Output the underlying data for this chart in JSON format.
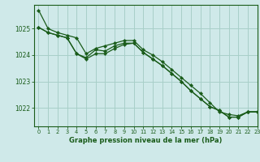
{
  "title": "Graphe pression niveau de la mer (hPa)",
  "background_color": "#cfe9e9",
  "grid_color": "#a8cfc8",
  "line_color": "#1a5c1a",
  "spine_color": "#1a5c1a",
  "xlim": [
    -0.5,
    23
  ],
  "ylim": [
    1021.3,
    1025.9
  ],
  "yticks": [
    1022,
    1023,
    1024,
    1025
  ],
  "xticks": [
    0,
    1,
    2,
    3,
    4,
    5,
    6,
    7,
    8,
    9,
    10,
    11,
    12,
    13,
    14,
    15,
    16,
    17,
    18,
    19,
    20,
    21,
    22,
    23
  ],
  "series": [
    [
      1025.7,
      1025.0,
      1024.85,
      1024.75,
      1024.65,
      1024.05,
      1024.25,
      1024.35,
      1024.45,
      1024.55,
      1024.55,
      1024.2,
      1024.0,
      1023.75,
      1023.45,
      1023.15,
      1022.85,
      1022.55,
      1022.2,
      1021.85,
      1021.75,
      1021.7,
      1021.85,
      1021.85
    ],
    [
      1025.05,
      1024.85,
      1024.75,
      1024.65,
      1024.05,
      1023.9,
      1024.2,
      1024.15,
      1024.35,
      1024.45,
      1024.45,
      1024.1,
      1023.85,
      1023.6,
      1023.3,
      1023.0,
      1022.65,
      1022.35,
      1022.05,
      1021.9,
      1021.65,
      1021.65,
      1021.85,
      1021.85
    ],
    [
      1025.05,
      1024.85,
      1024.75,
      1024.65,
      1024.05,
      1023.85,
      1024.05,
      1024.05,
      1024.25,
      1024.4,
      1024.45,
      1024.1,
      1023.85,
      1023.6,
      1023.3,
      1023.0,
      1022.65,
      1022.35,
      1022.05,
      1021.9,
      1021.65,
      1021.65,
      1021.85,
      1021.85
    ]
  ]
}
